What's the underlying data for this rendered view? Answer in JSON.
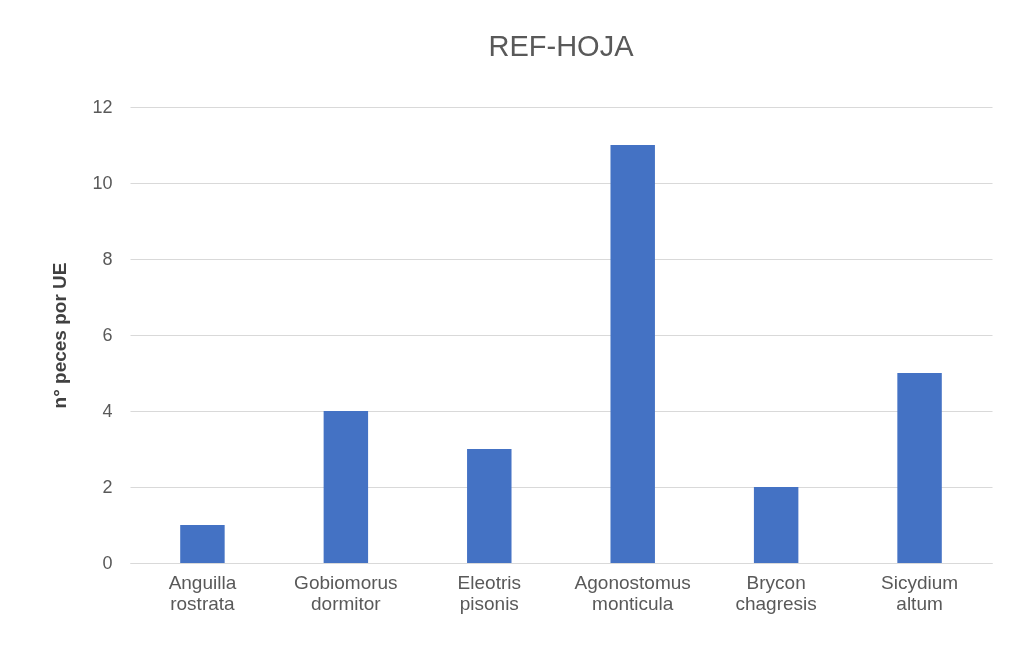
{
  "chart_data": {
    "type": "bar",
    "title": "REF-HOJA",
    "ylabel": "n° peces por UE",
    "categories": [
      "Anguilla rostrata",
      "Gobiomorus dormitor",
      "Eleotris pisonis",
      "Agonostomus monticula",
      "Brycon chagresis",
      "Sicydium altum"
    ],
    "values": [
      1,
      4,
      3,
      11,
      2,
      5
    ],
    "color": "#4472c4",
    "ylim": [
      0,
      12
    ],
    "yticks": [
      0,
      2,
      4,
      6,
      8,
      10,
      12
    ],
    "grid": "y"
  }
}
